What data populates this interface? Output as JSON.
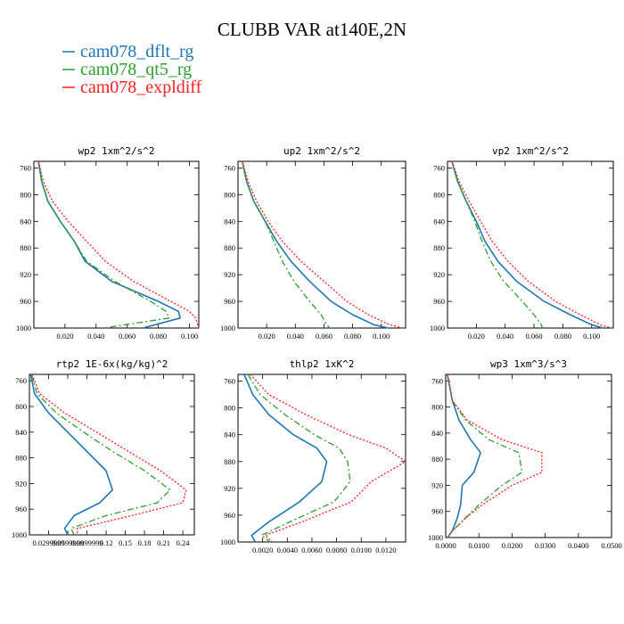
{
  "title": "CLUBB VAR at140E,2N",
  "legend": [
    {
      "label": "cam078_dflt_rg",
      "color": "#1f77b4"
    },
    {
      "label": "cam078_qt5_rg",
      "color": "#2ca02c"
    },
    {
      "label": "cam078_expldiff",
      "color": "#ff2020"
    }
  ],
  "chart_data": [
    {
      "type": "line",
      "title": "wp2  1xm^2/s^2",
      "xlim": [
        0.0,
        0.106
      ],
      "ylim": [
        1000,
        750
      ],
      "xticks": [
        0.02,
        0.04,
        0.06,
        0.08,
        0.1
      ],
      "xtick_labels": [
        "0.020",
        "0.040",
        "0.060",
        "0.080",
        "0.100"
      ],
      "yticks": [
        760,
        800,
        840,
        880,
        920,
        960,
        1000
      ],
      "ytick_labels": [
        "760",
        "800",
        "840",
        "880",
        "920",
        "960",
        "1000"
      ],
      "series": [
        {
          "name": "cam078_dflt_rg",
          "x": [
            0.003,
            0.005,
            0.009,
            0.017,
            0.026,
            0.033,
            0.05,
            0.08,
            0.093,
            0.094,
            0.07
          ],
          "y": [
            750,
            780,
            810,
            840,
            870,
            900,
            930,
            960,
            975,
            985,
            1000
          ]
        },
        {
          "name": "cam078_qt5_rg",
          "x": [
            0.003,
            0.005,
            0.009,
            0.017,
            0.026,
            0.034,
            0.052,
            0.075,
            0.085,
            0.087,
            0.045
          ],
          "y": [
            750,
            780,
            810,
            840,
            870,
            900,
            930,
            960,
            975,
            985,
            1000
          ]
        },
        {
          "name": "cam078_expldiff",
          "x": [
            0.003,
            0.006,
            0.012,
            0.022,
            0.034,
            0.046,
            0.064,
            0.088,
            0.1,
            0.104,
            0.106
          ],
          "y": [
            750,
            780,
            810,
            840,
            870,
            900,
            930,
            960,
            975,
            985,
            1000
          ]
        }
      ]
    },
    {
      "type": "line",
      "title": "up2  1xm^2/s^2",
      "xlim": [
        0.0,
        0.117
      ],
      "ylim": [
        1000,
        750
      ],
      "xticks": [
        0.02,
        0.04,
        0.06,
        0.08,
        0.1
      ],
      "xtick_labels": [
        "0.020",
        "0.040",
        "0.060",
        "0.080",
        "0.100"
      ],
      "yticks": [
        760,
        800,
        840,
        880,
        920,
        960,
        1000
      ],
      "ytick_labels": [
        "760",
        "800",
        "840",
        "880",
        "920",
        "960",
        "1000"
      ],
      "series": [
        {
          "name": "cam078_dflt_rg",
          "x": [
            0.003,
            0.006,
            0.011,
            0.019,
            0.027,
            0.037,
            0.05,
            0.065,
            0.08,
            0.095,
            0.105
          ],
          "y": [
            750,
            780,
            810,
            840,
            870,
            900,
            930,
            960,
            980,
            995,
            1000
          ]
        },
        {
          "name": "cam078_qt5_rg",
          "x": [
            0.003,
            0.006,
            0.011,
            0.019,
            0.025,
            0.031,
            0.039,
            0.05,
            0.058,
            0.062,
            0.064
          ],
          "y": [
            750,
            780,
            810,
            840,
            870,
            900,
            930,
            960,
            980,
            995,
            1000
          ]
        },
        {
          "name": "cam078_expldiff",
          "x": [
            0.003,
            0.007,
            0.013,
            0.021,
            0.031,
            0.044,
            0.06,
            0.076,
            0.091,
            0.106,
            0.115
          ],
          "y": [
            750,
            780,
            810,
            840,
            870,
            900,
            930,
            960,
            980,
            995,
            1000
          ]
        }
      ]
    },
    {
      "type": "line",
      "title": "vp2  1xm^2/s^2",
      "xlim": [
        0.0,
        0.115
      ],
      "ylim": [
        1000,
        750
      ],
      "xticks": [
        0.02,
        0.04,
        0.06,
        0.08,
        0.1
      ],
      "xtick_labels": [
        "0.020",
        "0.040",
        "0.060",
        "0.080",
        "0.100"
      ],
      "yticks": [
        760,
        800,
        840,
        880,
        920,
        960,
        1000
      ],
      "ytick_labels": [
        "760",
        "800",
        "840",
        "880",
        "920",
        "960",
        "1000"
      ],
      "series": [
        {
          "name": "cam078_dflt_rg",
          "x": [
            0.003,
            0.007,
            0.013,
            0.02,
            0.026,
            0.035,
            0.048,
            0.067,
            0.085,
            0.1,
            0.108
          ],
          "y": [
            750,
            780,
            810,
            840,
            870,
            900,
            930,
            960,
            980,
            995,
            1000
          ]
        },
        {
          "name": "cam078_qt5_rg",
          "x": [
            0.003,
            0.007,
            0.013,
            0.019,
            0.024,
            0.03,
            0.039,
            0.052,
            0.06,
            0.065,
            0.066
          ],
          "y": [
            750,
            780,
            810,
            840,
            870,
            900,
            930,
            960,
            980,
            995,
            1000
          ]
        },
        {
          "name": "cam078_expldiff",
          "x": [
            0.003,
            0.008,
            0.015,
            0.023,
            0.031,
            0.042,
            0.056,
            0.075,
            0.092,
            0.106,
            0.114
          ],
          "y": [
            750,
            780,
            810,
            840,
            870,
            900,
            930,
            960,
            980,
            995,
            1000
          ]
        }
      ]
    },
    {
      "type": "line",
      "title": "rtp2  1E-6x(kg/kg)^2",
      "xlim": [
        0.0,
        0.258
      ],
      "ylim": [
        1000,
        750
      ],
      "xticks": [
        0.03,
        0.06,
        0.09,
        0.12,
        0.15,
        0.18,
        0.21,
        0.24
      ],
      "xtick_labels": [
        "0.0299999",
        "0.0599999",
        "0.0899999",
        "0.12",
        "0.15",
        "0.18",
        "0.21",
        "0.24"
      ],
      "yticks": [
        760,
        800,
        840,
        880,
        920,
        960,
        1000
      ],
      "ytick_labels": [
        "760",
        "800",
        "840",
        "880",
        "920",
        "960",
        "1000"
      ],
      "series": [
        {
          "name": "cam078_dflt_rg",
          "x": [
            0.002,
            0.008,
            0.03,
            0.06,
            0.09,
            0.12,
            0.13,
            0.11,
            0.07,
            0.055,
            0.06
          ],
          "y": [
            750,
            780,
            810,
            840,
            870,
            900,
            930,
            950,
            970,
            990,
            1000
          ]
        },
        {
          "name": "cam078_qt5_rg",
          "x": [
            0.003,
            0.012,
            0.042,
            0.085,
            0.13,
            0.18,
            0.22,
            0.2,
            0.12,
            0.065,
            0.07
          ],
          "y": [
            750,
            780,
            810,
            840,
            870,
            900,
            930,
            950,
            970,
            990,
            1000
          ]
        },
        {
          "name": "cam078_expldiff",
          "x": [
            0.004,
            0.016,
            0.055,
            0.105,
            0.155,
            0.205,
            0.245,
            0.24,
            0.16,
            0.075,
            0.075
          ],
          "y": [
            750,
            780,
            810,
            840,
            870,
            900,
            930,
            950,
            970,
            990,
            1000
          ]
        }
      ]
    },
    {
      "type": "line",
      "title": "thlp2  1xK^2",
      "xlim": [
        0.0,
        0.0136
      ],
      "ylim": [
        1000,
        750
      ],
      "xticks": [
        0.002,
        0.004,
        0.006,
        0.008,
        0.01,
        0.012
      ],
      "xtick_labels": [
        "0.0020",
        "0.0040",
        "0.0060",
        "0.0080",
        "0.0100",
        "0.0120"
      ],
      "yticks": [
        760,
        800,
        840,
        880,
        920,
        960,
        1000
      ],
      "ytick_labels": [
        "760",
        "800",
        "840",
        "880",
        "920",
        "960",
        "1000"
      ],
      "series": [
        {
          "name": "cam078_dflt_rg",
          "x": [
            0.0005,
            0.0012,
            0.0025,
            0.0045,
            0.0064,
            0.0072,
            0.0068,
            0.005,
            0.0025,
            0.0011,
            0.0014
          ],
          "y": [
            750,
            780,
            810,
            840,
            860,
            880,
            910,
            940,
            970,
            990,
            1000
          ]
        },
        {
          "name": "cam078_qt5_rg",
          "x": [
            0.0008,
            0.0018,
            0.0038,
            0.0062,
            0.0082,
            0.0089,
            0.0091,
            0.0078,
            0.0042,
            0.0019,
            0.0026
          ],
          "y": [
            750,
            780,
            810,
            840,
            860,
            880,
            910,
            940,
            970,
            990,
            1000
          ]
        },
        {
          "name": "cam078_expldiff",
          "x": [
            0.001,
            0.0025,
            0.0055,
            0.009,
            0.012,
            0.0136,
            0.0108,
            0.0092,
            0.0052,
            0.0022,
            0.0028
          ],
          "y": [
            750,
            780,
            810,
            840,
            860,
            880,
            910,
            940,
            970,
            990,
            1000
          ]
        }
      ]
    },
    {
      "type": "line",
      "title": "wp3  1xm^3/s^3",
      "xlim": [
        0.0,
        0.05
      ],
      "ylim": [
        1000,
        750
      ],
      "xticks": [
        0.0,
        0.01,
        0.02,
        0.03,
        0.04,
        0.05
      ],
      "xtick_labels": [
        "0.0000",
        "0.0100",
        "0.0200",
        "0.0300",
        "0.0400",
        "0.0500"
      ],
      "yticks": [
        760,
        800,
        840,
        880,
        920,
        960,
        1000
      ],
      "ytick_labels": [
        "760",
        "800",
        "840",
        "880",
        "920",
        "960",
        "1000"
      ],
      "series": [
        {
          "name": "cam078_dflt_rg",
          "x": [
            0.0005,
            0.002,
            0.004,
            0.0075,
            0.0105,
            0.0085,
            0.005,
            0.0045,
            0.0035,
            0.002,
            0.0005
          ],
          "y": [
            750,
            790,
            820,
            850,
            870,
            900,
            920,
            950,
            970,
            990,
            1000
          ]
        },
        {
          "name": "cam078_qt5_rg",
          "x": [
            0.0005,
            0.002,
            0.006,
            0.013,
            0.022,
            0.023,
            0.017,
            0.01,
            0.006,
            0.002,
            0.0005
          ],
          "y": [
            750,
            790,
            820,
            850,
            870,
            900,
            920,
            950,
            970,
            990,
            1000
          ]
        },
        {
          "name": "cam078_expldiff",
          "x": [
            0.0005,
            0.002,
            0.0065,
            0.017,
            0.029,
            0.029,
            0.02,
            0.011,
            0.006,
            0.002,
            0.0005
          ],
          "y": [
            750,
            790,
            820,
            850,
            870,
            900,
            920,
            950,
            970,
            990,
            1000
          ]
        }
      ]
    }
  ]
}
